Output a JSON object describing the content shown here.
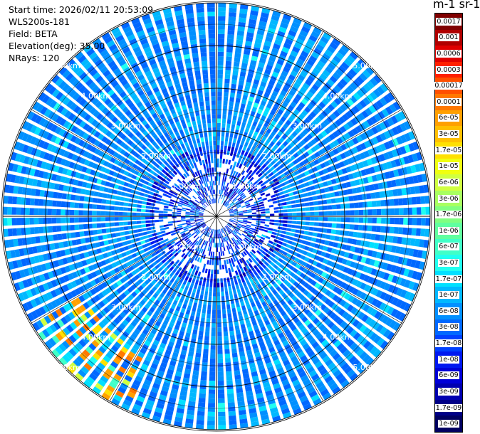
{
  "info": {
    "start_time": "Start time: 2026/02/11 20:53:09",
    "instrument": "WLS200s-181",
    "field": "Field: BETA",
    "elevation": "Elevation(deg): 35.00",
    "nrays": "NRays: 120"
  },
  "colorbar": {
    "title": "m-1 sr-1",
    "labels": [
      "0.0017",
      "0.001",
      "0.0006",
      "0.0003",
      "0.00017",
      "0.0001",
      "6e-05",
      "3e-05",
      "1.7e-05",
      "1e-05",
      "6e-06",
      "3e-06",
      "1.7e-06",
      "1e-06",
      "6e-07",
      "3e-07",
      "1.7e-07",
      "1e-07",
      "6e-08",
      "3e-08",
      "1.7e-08",
      "1e-08",
      "6e-09",
      "3e-09",
      "1.7e-09",
      "1e-09"
    ],
    "colors": [
      "#800000",
      "#b00000",
      "#e00000",
      "#ff2000",
      "#ff5000",
      "#ff7800",
      "#ffa000",
      "#ffc000",
      "#ffe000",
      "#f0ff10",
      "#d0ff40",
      "#a8ff60",
      "#80ff80",
      "#60ffa0",
      "#40ffc8",
      "#20fff0",
      "#00e0ff",
      "#00b8ff",
      "#0090ff",
      "#0068ff",
      "#0040ff",
      "#0018f0",
      "#0000d8",
      "#0000b0",
      "#000088",
      "#000060"
    ]
  },
  "chart_data": {
    "type": "heatmap",
    "projection": "polar PPI",
    "field": "BETA",
    "elevation_deg": 35.0,
    "n_rays": 120,
    "range_rings_km": [
      1,
      2,
      3,
      4,
      5
    ],
    "ring_labels": [
      "1.00km",
      "2.00km",
      "3.00km",
      "4.00km",
      "5.00km"
    ],
    "max_range_km": 5.0,
    "color_scale": "log",
    "value_range": [
      1e-09,
      0.0017
    ],
    "dominant_value": "3e-08 to 1e-07",
    "enhanced_sector": "south-west edge, up to ~1e-05"
  }
}
